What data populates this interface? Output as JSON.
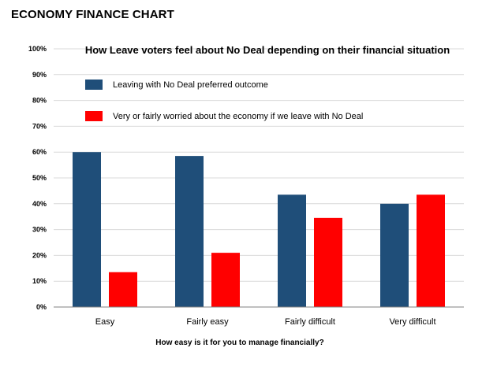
{
  "page_title": "ECONOMY FINANCE CHART",
  "chart_data": {
    "type": "bar",
    "title": "How Leave voters feel about No Deal depending on their financial situation",
    "xlabel": "How easy is it for you to manage financially?",
    "ylabel": "",
    "ylim": [
      0,
      100
    ],
    "yticks": [
      "0%",
      "10%",
      "20%",
      "30%",
      "40%",
      "50%",
      "60%",
      "70%",
      "80%",
      "90%",
      "100%"
    ],
    "categories": [
      "Easy",
      "Fairly easy",
      "Fairly difficult",
      "Very difficult"
    ],
    "series": [
      {
        "name": "Leaving with No Deal preferred outcome",
        "color": "#1f4e79",
        "values": [
          60,
          58.5,
          43.5,
          40
        ]
      },
      {
        "name": "Very or fairly worried about the economy if we leave with No Deal",
        "color": "#ff0000",
        "values": [
          13.5,
          21,
          34.5,
          43.5
        ]
      }
    ],
    "grid": true,
    "legend": "top-left inside plot"
  }
}
